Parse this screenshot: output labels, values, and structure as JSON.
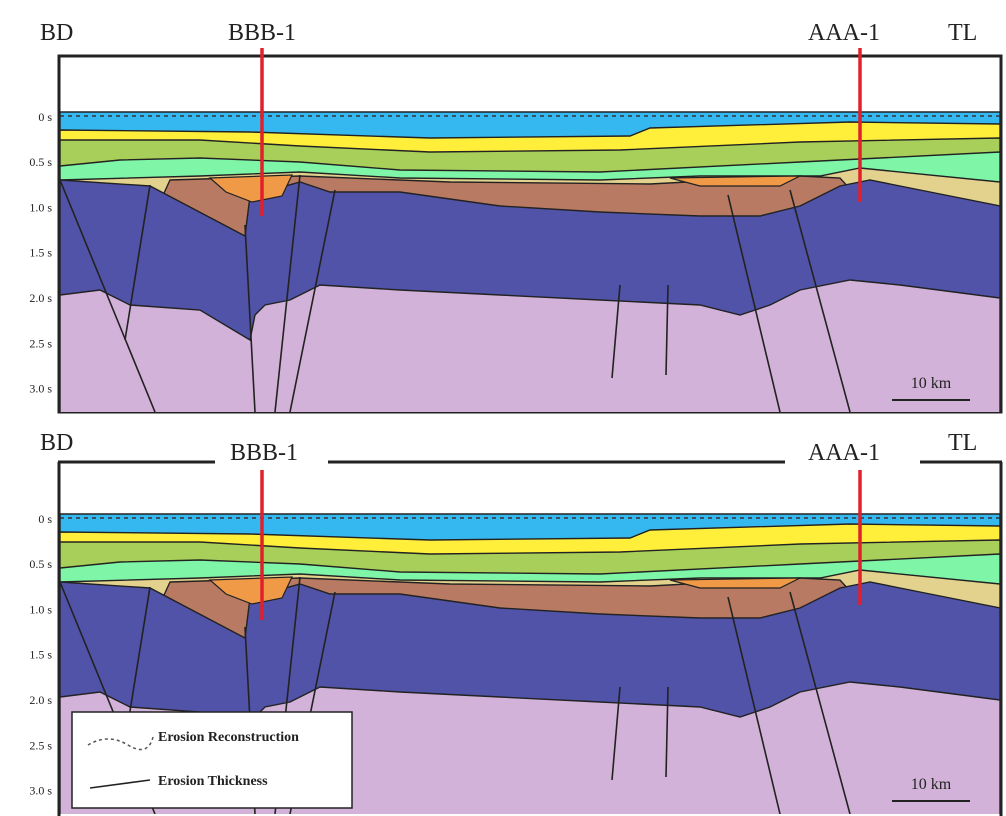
{
  "panels": [
    {
      "left_label": "BD",
      "wells": [
        "BBB-1",
        "AAA-1"
      ],
      "right_label": "TL",
      "axis_labels": [
        "0 s",
        "0.5 s",
        "1.0 s",
        "1.5 s",
        "2.0 s",
        "2.5 s",
        "3.0 s"
      ],
      "scale_bar": "10 km"
    },
    {
      "left_label": "BD",
      "wells": [
        "BBB-1",
        "AAA-1"
      ],
      "right_label": "TL",
      "axis_labels": [
        "0 s",
        "0.5 s",
        "1.0 s",
        "1.5 s",
        "2.0 s",
        "2.5 s",
        "3.0 s"
      ],
      "scale_bar": "10 km",
      "legend": [
        "Erosion Reconstruction",
        "Erosion Thickness"
      ]
    }
  ]
}
